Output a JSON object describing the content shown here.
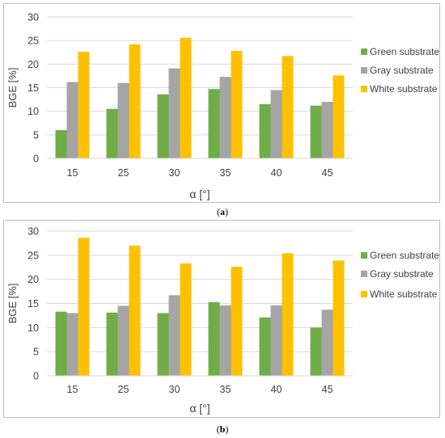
{
  "colors": {
    "green": "#70ad47",
    "gray": "#a5a5a5",
    "white": "#ffc000",
    "grid": "#d9d9d9",
    "frame": "#bfbfbf",
    "text": "#404040"
  },
  "captions": {
    "a_open": "(",
    "a_letter": "a",
    "a_close": ")",
    "b_open": "(",
    "b_letter": "b",
    "b_close": ")"
  },
  "chart_data": [
    {
      "id": "a",
      "type": "bar",
      "categories": [
        "15",
        "25",
        "30",
        "35",
        "40",
        "45"
      ],
      "xlabel": "α [°]",
      "ylabel": "BGE [%]",
      "ylim": [
        0,
        30
      ],
      "yticks": [
        0,
        5,
        10,
        15,
        20,
        25,
        30
      ],
      "grid": true,
      "legend_position": "right",
      "series": [
        {
          "name": "Green substrate",
          "color": "#70ad47",
          "values": [
            6.0,
            10.5,
            13.6,
            14.7,
            11.5,
            11.2
          ]
        },
        {
          "name": "Gray substrate",
          "color": "#a5a5a5",
          "values": [
            16.2,
            16.0,
            19.1,
            17.3,
            14.5,
            12.0
          ]
        },
        {
          "name": "White substrate",
          "color": "#ffc000",
          "values": [
            22.6,
            24.2,
            25.6,
            22.8,
            21.7,
            17.6
          ]
        }
      ]
    },
    {
      "id": "b",
      "type": "bar",
      "categories": [
        "15",
        "25",
        "30",
        "35",
        "40",
        "45"
      ],
      "xlabel": "α [°]",
      "ylabel": "BGE [%]",
      "ylim": [
        0,
        30
      ],
      "yticks": [
        0,
        5,
        10,
        15,
        20,
        25,
        30
      ],
      "grid": true,
      "legend_position": "right",
      "series": [
        {
          "name": "Green substrate",
          "color": "#70ad47",
          "values": [
            13.3,
            13.1,
            13.0,
            15.3,
            12.1,
            10.0
          ]
        },
        {
          "name": "Gray substrate",
          "color": "#a5a5a5",
          "values": [
            13.0,
            14.5,
            16.7,
            14.6,
            14.6,
            13.7
          ]
        },
        {
          "name": "White substrate",
          "color": "#ffc000",
          "values": [
            28.6,
            27.0,
            23.3,
            22.6,
            25.4,
            23.9
          ]
        }
      ]
    }
  ]
}
